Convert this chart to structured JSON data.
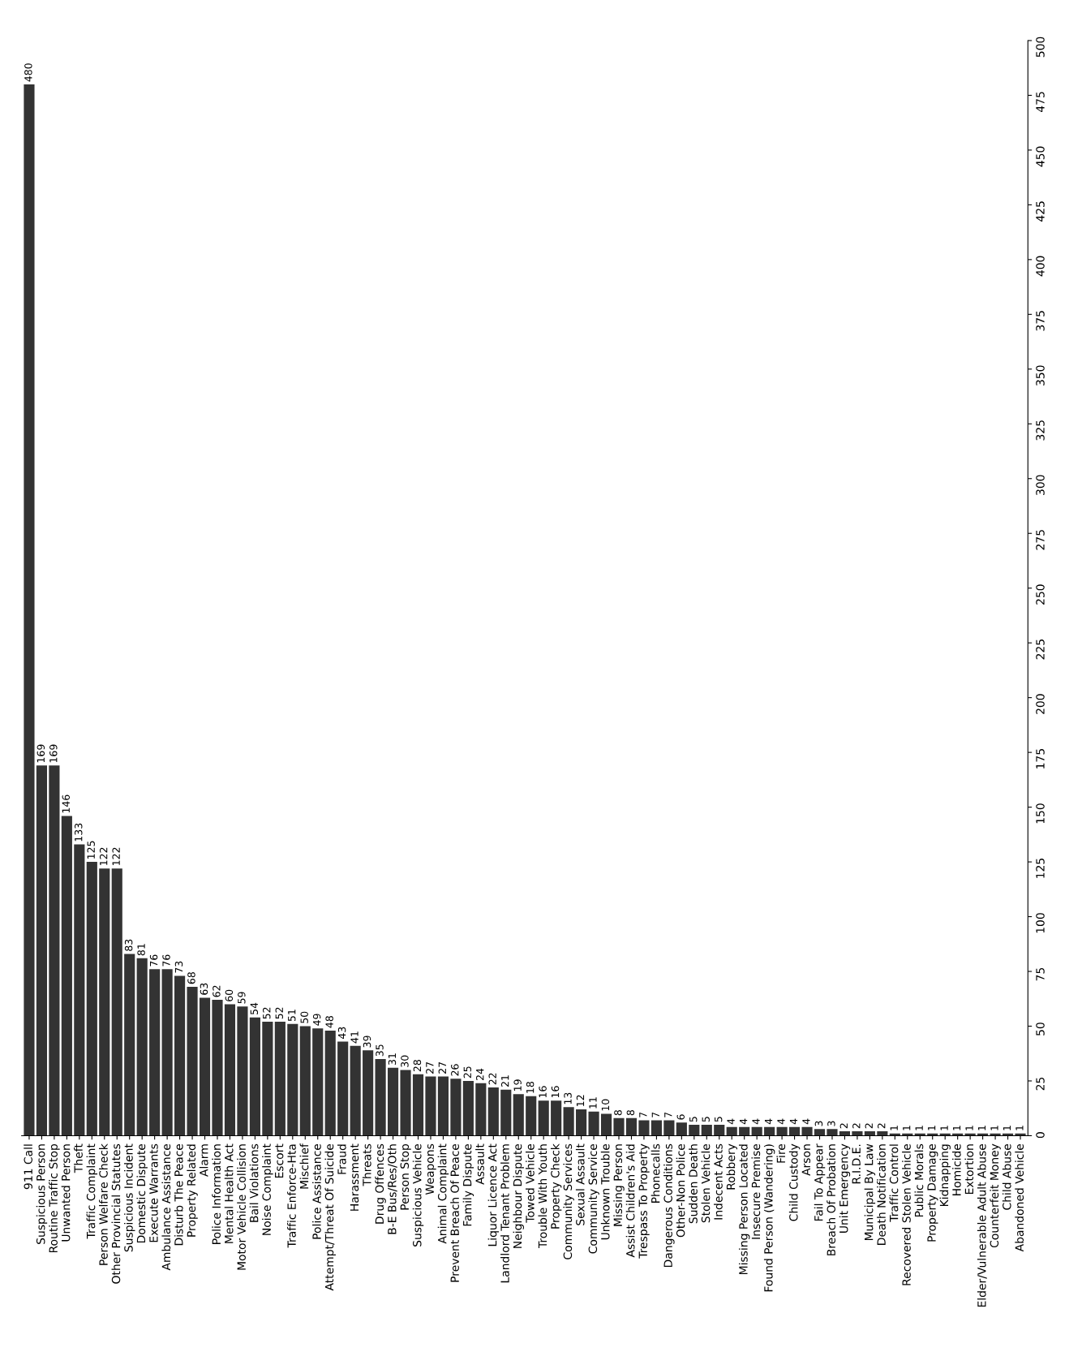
{
  "chart_data": {
    "type": "bar",
    "categories": [
      "911 Call",
      "Suspicious Person",
      "Routine Traffic Stop",
      "Unwanted Person",
      "Theft",
      "Traffic Complaint",
      "Person Welfare Check",
      "Other Provincial Statutes",
      "Suspicious Incident",
      "Domestic Dispute",
      "Execute Warrants",
      "Ambulance Assistance",
      "Disturb The Peace",
      "Property Related",
      "Alarm",
      "Police Information",
      "Mental Health Act",
      "Motor Vehicle Collision",
      "Bail Violations",
      "Noise Complaint",
      "Escort",
      "Traffic Enforce-Hta",
      "Mischief",
      "Police Assistance",
      "Attempt/Threat Of Suicide",
      "Fraud",
      "Harassment",
      "Threats",
      "Drug Offences",
      "B-E Bus/Res/Oth",
      "Person Stop",
      "Suspicious Vehicle",
      "Weapons",
      "Animal Complaint",
      "Prevent Breach Of Peace",
      "Family Dispute",
      "Assault",
      "Liquor Licence Act",
      "Landlord Tenant Problem",
      "Neighbour Dispute",
      "Towed Vehicle",
      "Trouble With Youth",
      "Property Check",
      "Community Services",
      "Sexual Assault",
      "Community Service",
      "Unknown Trouble",
      "Missing Person",
      "Assist Children's Aid",
      "Trespass To Property",
      "Phonecalls",
      "Dangerous Conditions",
      "Other-Non Police",
      "Sudden Death",
      "Stolen Vehicle",
      "Indecent Acts",
      "Robbery",
      "Missing Person Located",
      "Insecure Premise",
      "Found Person (Wandering)",
      "Fire",
      "Child Custody",
      "Arson",
      "Fail To Appear",
      "Breach Of Probation",
      "Unit Emergency",
      "R.I.D.E.",
      "Municipal By Law",
      "Death Notification",
      "Traffic Control",
      "Recovered Stolen Vehicle",
      "Public Morals",
      "Property Damage",
      "Kidnapping",
      "Homicide",
      "Extortion",
      "Elder/Vulnerable Adult Abuse",
      "Counterfeit Money",
      "Child Abuse",
      "Abandoned Vehicle"
    ],
    "values": [
      480,
      169,
      169,
      146,
      133,
      125,
      122,
      122,
      83,
      81,
      76,
      76,
      73,
      68,
      63,
      62,
      60,
      59,
      54,
      52,
      52,
      51,
      50,
      49,
      48,
      43,
      41,
      39,
      35,
      31,
      30,
      28,
      27,
      27,
      26,
      25,
      24,
      22,
      21,
      19,
      18,
      16,
      16,
      13,
      12,
      11,
      10,
      8,
      8,
      7,
      7,
      7,
      6,
      5,
      5,
      5,
      4,
      4,
      4,
      4,
      4,
      4,
      4,
      3,
      3,
      2,
      2,
      2,
      2,
      1,
      1,
      1,
      1,
      1,
      1,
      1,
      1,
      1,
      1,
      1
    ],
    "color": "#333333",
    "ylim": [
      0,
      500
    ],
    "yticks": [
      0,
      25,
      50,
      75,
      100,
      125,
      150,
      175,
      200,
      225,
      250,
      275,
      300,
      325,
      350,
      375,
      400,
      425,
      450,
      475,
      500
    ],
    "data_labels": true,
    "grid": false
  }
}
